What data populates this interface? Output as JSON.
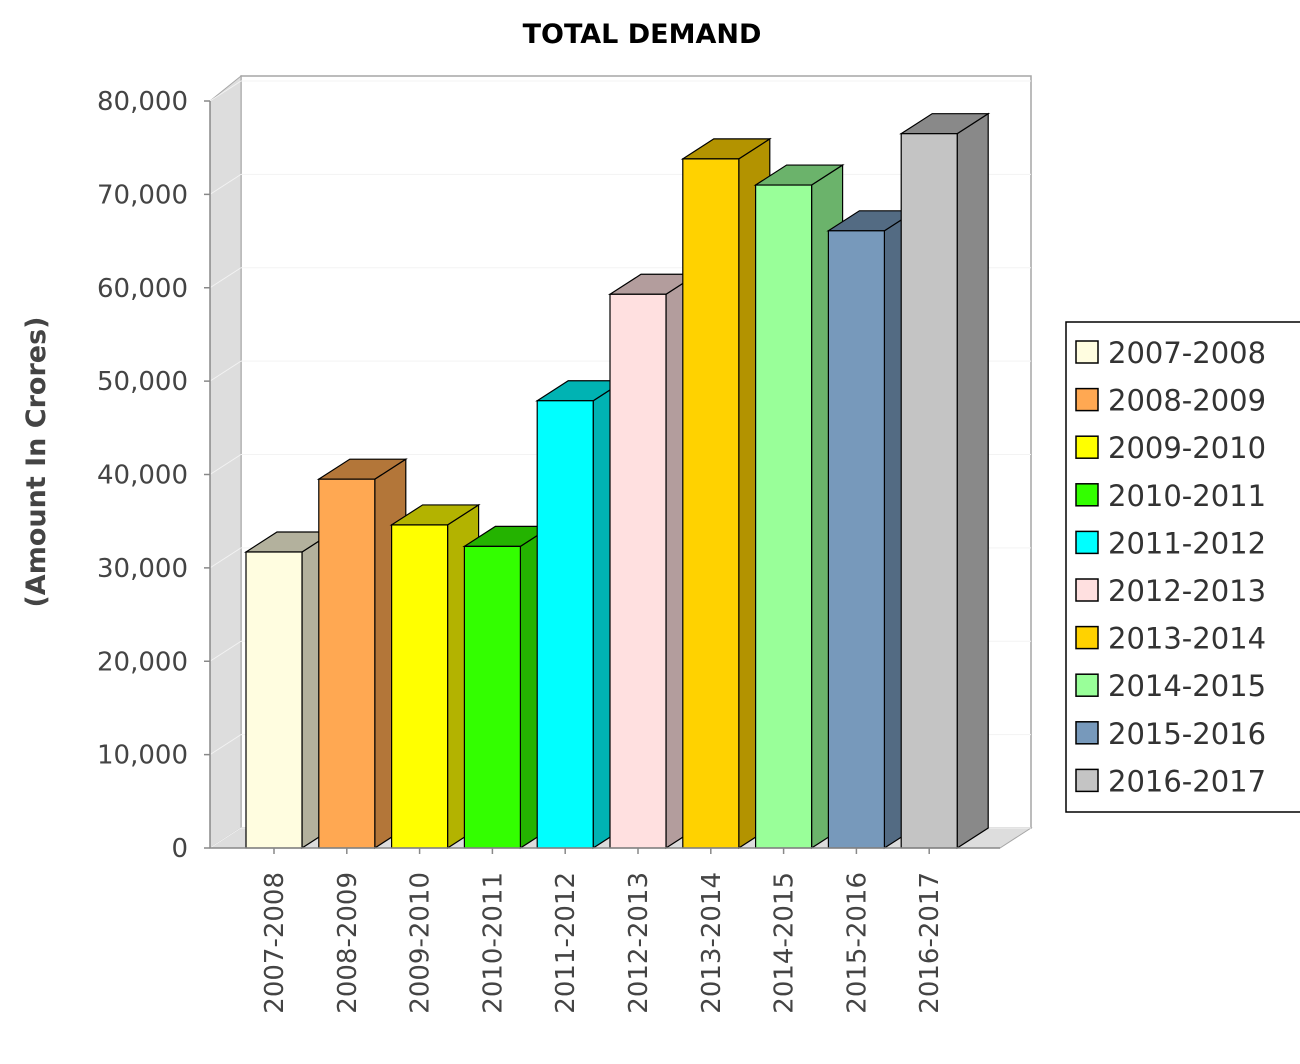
{
  "chart_data": {
    "type": "bar",
    "title": "TOTAL DEMAND",
    "xlabel": "",
    "ylabel": "(Amount In Crores)",
    "ylim": [
      0,
      80000
    ],
    "ytick_labels": [
      "0",
      "10,000",
      "20,000",
      "30,000",
      "40,000",
      "50,000",
      "60,000",
      "70,000",
      "80,000"
    ],
    "categories": [
      "2007-2008",
      "2008-2009",
      "2009-2010",
      "2010-2011",
      "2011-2012",
      "2012-2013",
      "2013-2014",
      "2014-2015",
      "2015-2016",
      "2016-2017"
    ],
    "values": [
      31700,
      39500,
      34600,
      32300,
      47900,
      59300,
      73800,
      71000,
      66100,
      76500
    ],
    "colors": [
      "#fffde0",
      "#ffa852",
      "#ffff00",
      "#33ff00",
      "#00ffff",
      "#ffe0e0",
      "#ffd200",
      "#99ff99",
      "#7799bb",
      "#c4c4c4"
    ],
    "legend": {
      "position": "right",
      "entries": [
        "2007-2008",
        "2008-2009",
        "2009-2010",
        "2010-2011",
        "2011-2012",
        "2012-2013",
        "2013-2014",
        "2014-2015",
        "2015-2016",
        "2016-2017"
      ]
    },
    "grid": false,
    "style": "3d"
  }
}
